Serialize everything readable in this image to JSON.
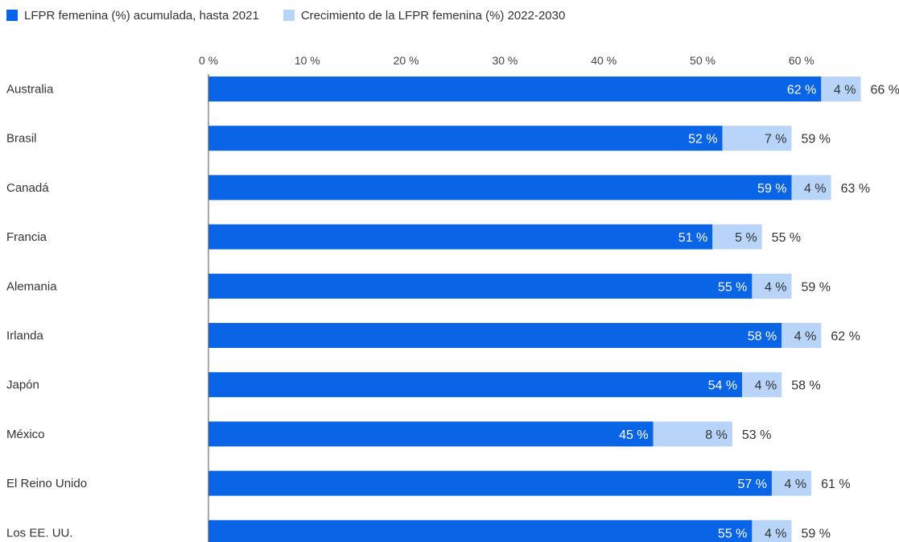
{
  "chart_data": {
    "type": "bar",
    "orientation": "horizontal",
    "stacked": true,
    "title": "",
    "xlabel": "",
    "ylabel": "",
    "xlim": [
      0,
      70
    ],
    "x_ticks": [
      "0 %",
      "10 %",
      "20 %",
      "30 %",
      "40 %",
      "50 %",
      "60 %"
    ],
    "categories": [
      "Australia",
      "Brasil",
      "Canadá",
      "Francia",
      "Alemania",
      "Irlanda",
      "Japón",
      "México",
      "El Reino Unido",
      "Los EE. UU."
    ],
    "series": [
      {
        "name": "LFPR femenina (%) acumulada, hasta 2021",
        "color": "#0a64e6",
        "values": [
          62,
          52,
          59,
          51,
          55,
          58,
          54,
          45,
          57,
          55
        ],
        "labels": [
          "62 %",
          "52 %",
          "59 %",
          "51 %",
          "55 %",
          "58 %",
          "54 %",
          "45 %",
          "57 %",
          "55 %"
        ]
      },
      {
        "name": "Crecimiento de la LFPR femenina (%) 2022-2030",
        "color": "#b8d4f8",
        "values": [
          4,
          7,
          4,
          5,
          4,
          4,
          4,
          8,
          4,
          4
        ],
        "labels": [
          "4 %",
          "7 %",
          "4 %",
          "5 %",
          "4 %",
          "4 %",
          "4 %",
          "8 %",
          "4 %",
          "4 %"
        ]
      }
    ],
    "totals": [
      66,
      59,
      63,
      55,
      59,
      62,
      58,
      53,
      61,
      59
    ],
    "total_labels": [
      "66 %",
      "59 %",
      "63 %",
      "55 %",
      "59 %",
      "62 %",
      "58 %",
      "53 %",
      "61 %",
      "59 %"
    ],
    "legend_position": "top-left",
    "grid": false
  }
}
